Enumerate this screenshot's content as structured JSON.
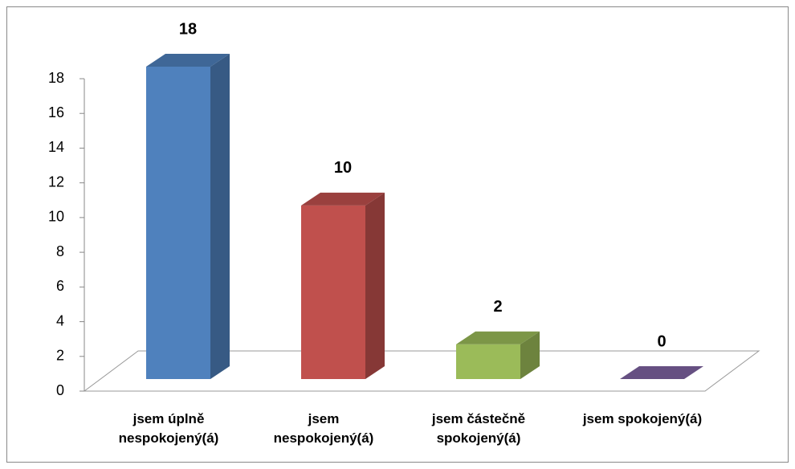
{
  "chart_data": {
    "type": "bar3d",
    "categories": [
      "jsem úplně nespokojený(á)",
      "jsem nespokojený(á)",
      "jsem částečně spokojený(á)",
      "jsem spokojený(á)"
    ],
    "values": [
      18,
      10,
      2,
      0
    ],
    "colors": [
      "#4f81bd",
      "#c0504d",
      "#9bbb59",
      "#8064a2"
    ],
    "ylim": [
      0,
      18
    ],
    "yticks": [
      0,
      2,
      4,
      6,
      8,
      10,
      12,
      14,
      16,
      18
    ]
  }
}
